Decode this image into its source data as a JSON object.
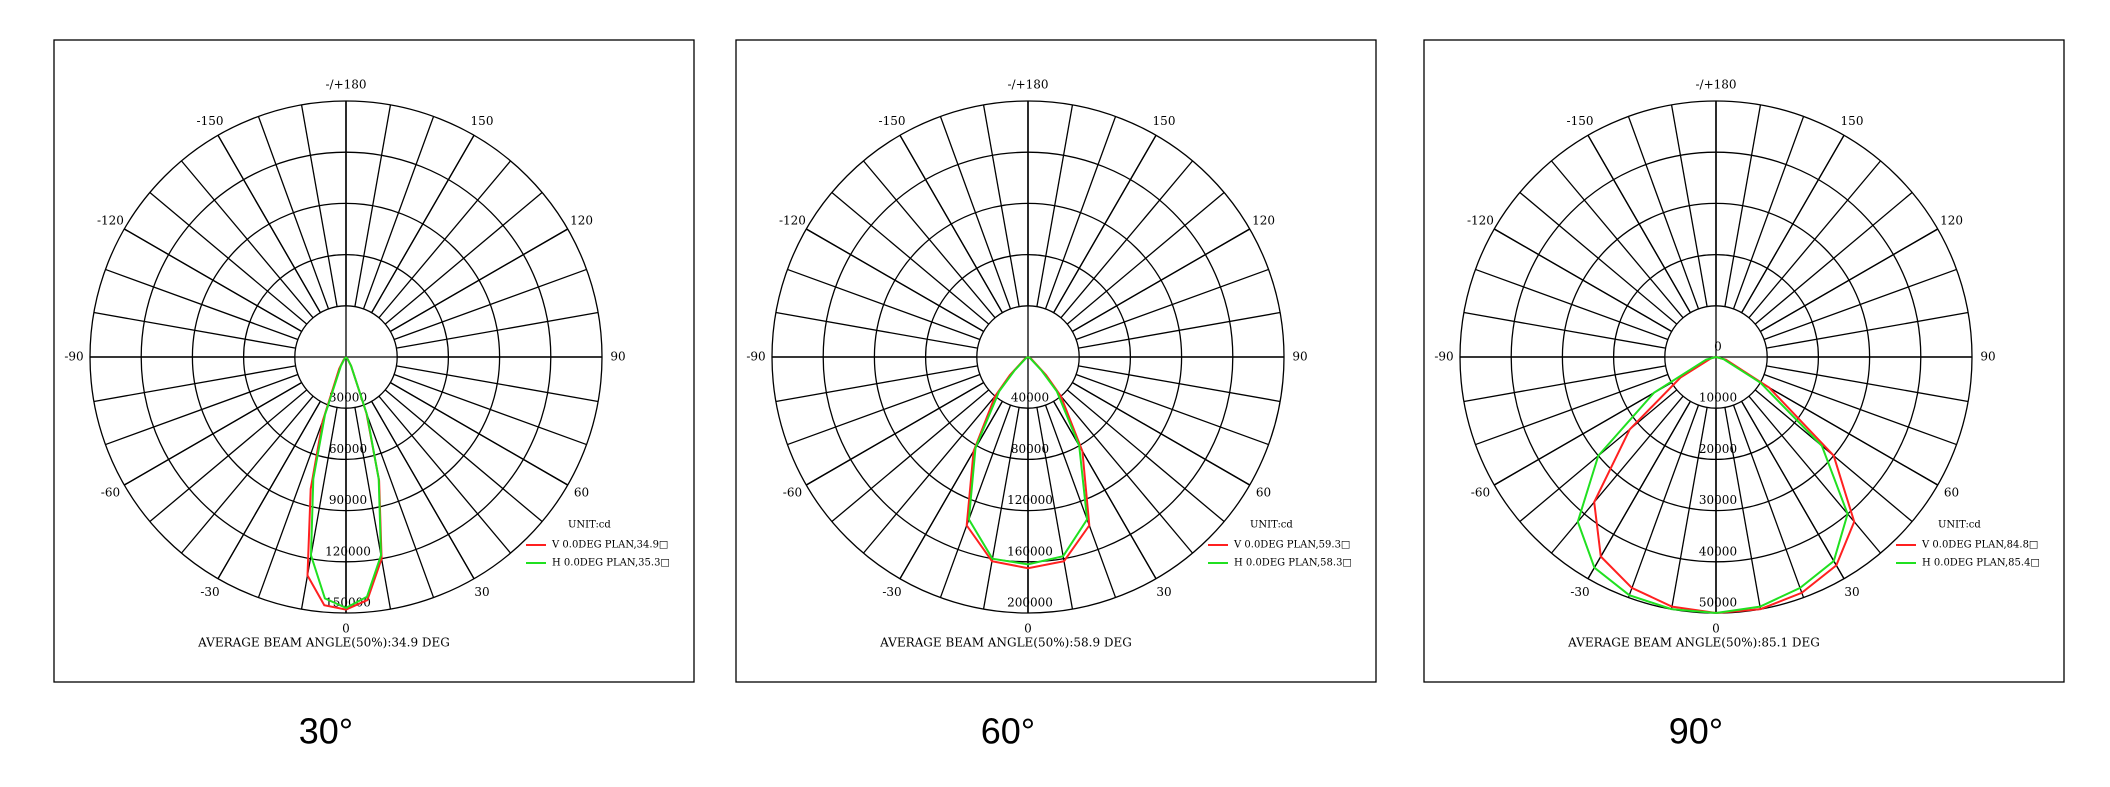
{
  "chart_data": [
    {
      "type": "polar",
      "caption": "30°",
      "annotation": "AVERAGE BEAM ANGLE(50%):34.9 DEG",
      "unit_label": "UNIT:cd",
      "angle_ticks": [
        0,
        30,
        60,
        90,
        120,
        150,
        {
          "value": 180,
          "label": "-/+180"
        },
        -150,
        -120,
        -90,
        -60,
        -30
      ],
      "rlim": [
        0,
        150000
      ],
      "rticks": [
        30000,
        60000,
        90000,
        120000,
        150000
      ],
      "x": [
        -90,
        -60,
        -40,
        -30,
        -20,
        -15,
        -10,
        -5,
        0,
        5,
        10,
        15,
        20,
        30,
        40,
        60,
        90
      ],
      "series": [
        {
          "name": "V 0.0DEG PLAN,34.9□",
          "color": "#ff2020",
          "values": [
            0,
            0,
            2000,
            8000,
            40000,
            80000,
            130000,
            146000,
            148000,
            143000,
            120000,
            75000,
            35000,
            6000,
            1500,
            0,
            0
          ]
        },
        {
          "name": "H 0.0DEG PLAN,35.3□",
          "color": "#20e020",
          "values": [
            0,
            0,
            1500,
            6000,
            36000,
            74000,
            118000,
            142000,
            147000,
            141000,
            118000,
            74000,
            36000,
            6000,
            1500,
            0,
            0
          ]
        }
      ]
    },
    {
      "type": "polar",
      "caption": "60°",
      "annotation": "AVERAGE BEAM ANGLE(50%):58.9 DEG",
      "unit_label": "UNIT:cd",
      "angle_ticks": [
        0,
        30,
        60,
        90,
        120,
        150,
        {
          "value": 180,
          "label": "-/+180"
        },
        -150,
        -120,
        -90,
        -60,
        -30
      ],
      "rlim": [
        0,
        200000
      ],
      "rticks": [
        40000,
        80000,
        120000,
        160000,
        200000
      ],
      "x": [
        -90,
        -60,
        -45,
        -40,
        -30,
        -20,
        -10,
        0,
        10,
        20,
        30,
        40,
        45,
        60,
        90
      ],
      "series": [
        {
          "name": "V 0.0DEG PLAN,59.3□",
          "color": "#ff2020",
          "values": [
            0,
            3000,
            20000,
            40000,
            85000,
            140000,
            162000,
            165000,
            162000,
            140000,
            85000,
            40000,
            20000,
            3000,
            0
          ]
        },
        {
          "name": "H 0.0DEG PLAN,58.3□",
          "color": "#20e020",
          "values": [
            0,
            2000,
            15000,
            35000,
            82000,
            135000,
            160000,
            162000,
            158000,
            135000,
            80000,
            35000,
            15000,
            2000,
            0
          ]
        }
      ]
    },
    {
      "type": "polar",
      "caption": "90°",
      "annotation": "AVERAGE BEAM ANGLE(50%):85.1 DEG",
      "unit_label": "UNIT:cd",
      "angle_ticks": [
        0,
        30,
        60,
        90,
        120,
        150,
        {
          "value": 180,
          "label": "-/+180"
        },
        -150,
        -120,
        -90,
        -60,
        -30
      ],
      "rlim": [
        0,
        50000
      ],
      "rticks": [
        0,
        10000,
        20000,
        30000,
        40000,
        50000
      ],
      "x": [
        -90,
        -75,
        -60,
        -50,
        -40,
        -30,
        -20,
        -10,
        0,
        10,
        20,
        30,
        40,
        50,
        60,
        75,
        90
      ],
      "series": [
        {
          "name": "V 0.0DEG PLAN,84.8□",
          "color": "#ff2020",
          "values": [
            0,
            1000,
            8000,
            22000,
            37000,
            45000,
            48000,
            49500,
            50000,
            50000,
            49000,
            47000,
            42000,
            30000,
            12000,
            2000,
            0
          ]
        },
        {
          "name": "H 0.0DEG PLAN,85.4□",
          "color": "#20e020",
          "values": [
            0,
            2000,
            14000,
            30000,
            42000,
            47500,
            49500,
            50000,
            50000,
            49500,
            48000,
            46000,
            40000,
            27000,
            10000,
            1500,
            0
          ]
        }
      ]
    }
  ]
}
